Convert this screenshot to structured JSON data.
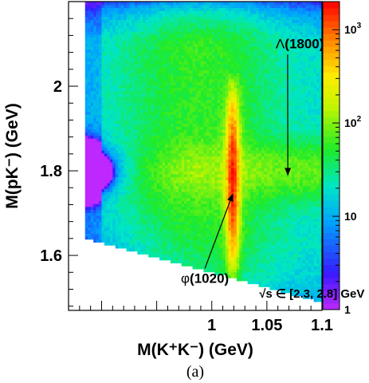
{
  "chart_data": {
    "type": "heatmap",
    "title": "",
    "xlabel": "M(K⁺K⁻) (GeV)",
    "ylabel": "M(pK⁻) (GeV)",
    "xlim": [
      0.87,
      1.1
    ],
    "ylim": [
      1.47,
      2.2
    ],
    "x_ticks": [
      {
        "value": 1.0,
        "label": "1"
      },
      {
        "value": 1.05,
        "label": "1.05"
      },
      {
        "value": 1.1,
        "label": "1.1"
      }
    ],
    "y_ticks": [
      {
        "value": 1.6,
        "label": "1.6"
      },
      {
        "value": 1.8,
        "label": "1.8"
      },
      {
        "value": 2.0,
        "label": "2"
      }
    ],
    "z_scale": "log",
    "z_range": [
      1,
      2000
    ],
    "z_ticks": [
      {
        "value": 1,
        "base": "1",
        "exp": ""
      },
      {
        "value": 10,
        "base": "10",
        "exp": ""
      },
      {
        "value": 100,
        "base": "10",
        "exp": "2"
      },
      {
        "value": 1000,
        "base": "10",
        "exp": "3"
      }
    ],
    "region": {
      "x_left_edge": 0.8855,
      "lower_boundary_y_at_x_min": 1.65,
      "lower_boundary_y_at_x_max": 1.49,
      "upper_boundary_y_at_x_min": 2.17,
      "upper_boundary_y_at_x_max": 2.2
    },
    "features": [
      {
        "name": "phi(1020) band",
        "x_center": 1.019,
        "x_width": 0.004,
        "y_range": [
          1.58,
          2.1
        ],
        "peak_count": 1500
      },
      {
        "name": "Lambda(1800) band",
        "y_center": 1.8,
        "y_width": 0.06,
        "peak_count": 60
      }
    ],
    "annotations": [
      {
        "id": "lambda",
        "text_prefix": "Λ",
        "text": "(1800)",
        "label_x": 1.058,
        "label_y": 2.09,
        "arrow_to_x": 1.069,
        "arrow_to_y": 1.79
      },
      {
        "id": "phi",
        "text_prefix": "φ",
        "text": "(1020)",
        "label_x": 0.972,
        "label_y": 1.535,
        "arrow_to_x": 1.019,
        "arrow_to_y": 1.745
      },
      {
        "id": "sqrt-s",
        "text": "√s ∈ [2.3, 2.8] GeV",
        "label_x": 1.043,
        "label_y": 1.5
      }
    ],
    "panel_label": "(a)",
    "grid": false
  }
}
